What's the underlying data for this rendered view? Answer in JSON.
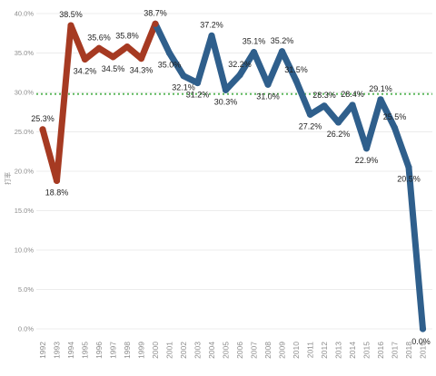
{
  "chart_data": {
    "type": "line",
    "ylabel": "打率",
    "ylim": [
      0,
      40
    ],
    "y_tick_labels": [
      "0.0%",
      "5.0%",
      "10.0%",
      "15.0%",
      "20.0%",
      "25.0%",
      "30.0%",
      "35.0%",
      "40.0%"
    ],
    "grid": true,
    "reference_line": {
      "value": 29.8,
      "style": "dotted",
      "color": "#5cb85c"
    },
    "x": [
      "1992",
      "1993",
      "1994",
      "1995",
      "1996",
      "1997",
      "1998",
      "1999",
      "2000",
      "2001",
      "2002",
      "2003",
      "2004",
      "2005",
      "2006",
      "2007",
      "2008",
      "2009",
      "2010",
      "2011",
      "2012",
      "2013",
      "2014",
      "2015",
      "2016",
      "2017",
      "2018",
      "2019"
    ],
    "values": [
      25.3,
      18.8,
      38.5,
      34.2,
      35.6,
      34.5,
      35.8,
      34.3,
      38.7,
      35.0,
      32.1,
      31.2,
      37.2,
      30.3,
      32.2,
      35.1,
      31.0,
      35.2,
      31.5,
      27.2,
      28.3,
      26.2,
      28.4,
      22.9,
      29.1,
      25.5,
      20.5,
      0.0
    ],
    "data_labels": [
      "25.3%",
      "18.8%",
      "38.5%",
      "34.2%",
      "35.6%",
      "34.5%",
      "35.8%",
      "34.3%",
      "38.7%",
      "35.0%",
      "32.1%",
      "31.2%",
      "37.2%",
      "30.3%",
      "32.2%",
      "35.1%",
      "31.0%",
      "35.2%",
      "31.5%",
      "27.2%",
      "28.3%",
      "26.2%",
      "28.4%",
      "22.9%",
      "29.1%",
      "25.5%",
      "20.5%",
      "0.0%"
    ],
    "label_position": [
      "above",
      "below",
      "above",
      "below",
      "above",
      "below",
      "above",
      "below",
      "above",
      "below",
      "below",
      "below",
      "above",
      "below",
      "above",
      "above",
      "below",
      "above",
      "above",
      "below",
      "above",
      "below",
      "above",
      "below",
      "above",
      "above",
      "below",
      "below"
    ],
    "segments": [
      {
        "from": "1992",
        "to": "2000",
        "color": "#a63a22"
      },
      {
        "from": "2000",
        "to": "2019",
        "color": "#2f5f8c"
      }
    ]
  }
}
